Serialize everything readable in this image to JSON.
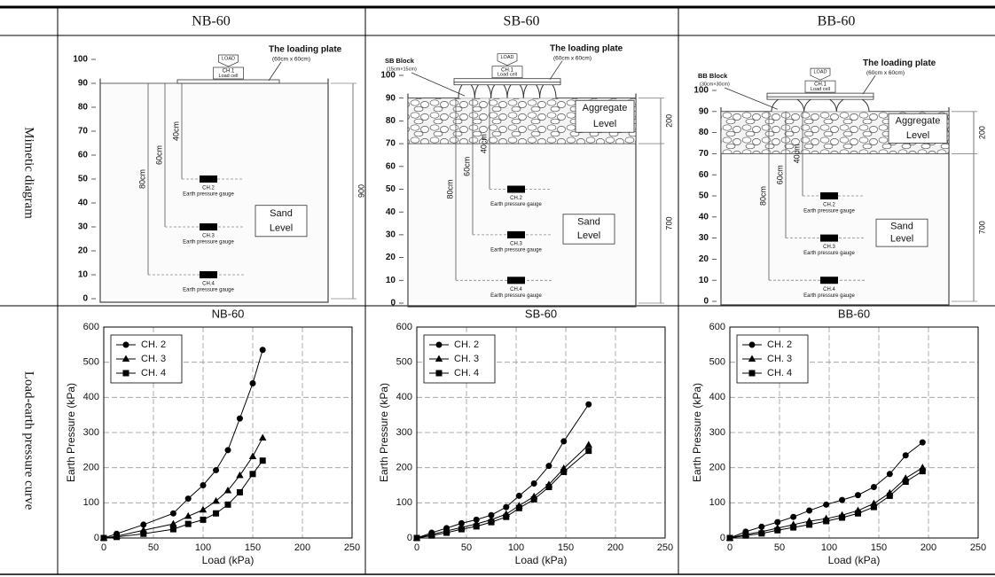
{
  "table": {
    "header": [
      "NB-60",
      "SB-60",
      "BB-60"
    ],
    "row_labels": [
      "Mimetic diagram",
      "Load-earth pressure curve"
    ]
  },
  "diagrams": [
    {
      "ylim": [
        0,
        100
      ],
      "yticks": [
        0,
        10,
        20,
        30,
        40,
        50,
        60,
        70,
        80,
        90,
        100
      ],
      "load": "LOAD",
      "ch1": "CH.1",
      "ch1_sub": "Load cell",
      "plate": "The loading plate",
      "plate_size": "(60cm x 60cm)",
      "depths": [
        "40cm",
        "60cm",
        "80cm"
      ],
      "gauges": [
        "CH.2",
        "CH.3",
        "CH.4"
      ],
      "gauge_text": "Earth pressure gauge",
      "sand": [
        "Sand",
        "Level"
      ],
      "dims": [
        "900"
      ]
    },
    {
      "ylim": [
        0,
        100
      ],
      "yticks": [
        0,
        10,
        20,
        30,
        40,
        50,
        60,
        70,
        80,
        90,
        100
      ],
      "block": "SB Block",
      "block_size": "(15cm×15cm)",
      "load": "LOAD",
      "ch1": "CH.1",
      "ch1_sub": "Load cell",
      "plate": "The loading plate",
      "plate_size": "(60cm x 60cm)",
      "depths": [
        "40cm",
        "60cm",
        "80cm"
      ],
      "gauges": [
        "CH.2",
        "CH.3",
        "CH.4"
      ],
      "gauge_text": "Earth pressure gauge",
      "aggregate": [
        "Aggregate",
        "Level"
      ],
      "sand": [
        "Sand",
        "Level"
      ],
      "dims": [
        "200",
        "700"
      ]
    },
    {
      "ylim": [
        0,
        100
      ],
      "yticks": [
        0,
        10,
        20,
        30,
        40,
        50,
        60,
        70,
        80,
        90,
        100
      ],
      "block": "BB Block",
      "block_size": "(30cm×30cm)",
      "load": "LOAD",
      "ch1": "CH.1",
      "ch1_sub": "Load cell",
      "plate": "The loading plate",
      "plate_size": "(60cm x 60cm)",
      "depths": [
        "40cm",
        "60cm",
        "80cm"
      ],
      "gauges": [
        "CH.2",
        "CH.3",
        "CH.4"
      ],
      "gauge_text": "Earth pressure gauge",
      "aggregate": [
        "Aggregate",
        "Level"
      ],
      "sand": [
        "Sand",
        "Level"
      ],
      "dims": [
        "200",
        "700"
      ]
    }
  ],
  "chart_data": [
    {
      "type": "line",
      "title": "NB-60",
      "xlabel": "Load (kPa)",
      "ylabel": "Earth Pressure (kPa)",
      "x": [
        0,
        13,
        40,
        70,
        85,
        100,
        113,
        125,
        137,
        150,
        160
      ],
      "series": [
        {
          "name": "CH. 2",
          "color": "#000000",
          "marker": "circle",
          "values": [
            0,
            12,
            38,
            70,
            112,
            150,
            193,
            250,
            340,
            440,
            535
          ]
        },
        {
          "name": "CH. 3",
          "color": "#000000",
          "marker": "triangle",
          "values": [
            0,
            5,
            22,
            40,
            62,
            80,
            105,
            135,
            178,
            232,
            285
          ]
        },
        {
          "name": "CH. 4",
          "color": "#000000",
          "marker": "square",
          "values": [
            0,
            3,
            12,
            25,
            40,
            52,
            70,
            95,
            130,
            182,
            220
          ]
        }
      ],
      "xlim": [
        0,
        250
      ],
      "xticks": [
        0,
        50,
        100,
        150,
        200,
        250
      ],
      "ylim": [
        0,
        600
      ],
      "yticks": [
        0,
        100,
        200,
        300,
        400,
        500,
        600
      ],
      "grid": true,
      "legend": "upper left"
    },
    {
      "type": "line",
      "title": "SB-60",
      "xlabel": "Load (kPa)",
      "ylabel": "Earth Pressure (kPa)",
      "x": [
        0,
        15,
        30,
        45,
        60,
        75,
        90,
        103,
        118,
        133,
        148,
        173
      ],
      "series": [
        {
          "name": "CH. 2",
          "color": "#000000",
          "marker": "circle",
          "values": [
            0,
            15,
            28,
            42,
            52,
            65,
            88,
            120,
            155,
            205,
            275,
            380
          ]
        },
        {
          "name": "CH. 3",
          "color": "#000000",
          "marker": "triangle",
          "values": [
            0,
            10,
            20,
            30,
            40,
            52,
            68,
            92,
            118,
            152,
            198,
            265
          ]
        },
        {
          "name": "CH. 4",
          "color": "#000000",
          "marker": "square",
          "values": [
            0,
            7,
            15,
            25,
            33,
            45,
            60,
            85,
            110,
            145,
            188,
            248
          ]
        }
      ],
      "xlim": [
        0,
        250
      ],
      "xticks": [
        0,
        50,
        100,
        150,
        200,
        250
      ],
      "ylim": [
        0,
        600
      ],
      "yticks": [
        0,
        100,
        200,
        300,
        400,
        500,
        600
      ],
      "grid": true,
      "legend": "upper left"
    },
    {
      "type": "line",
      "title": "BB-60",
      "xlabel": "Load (kPa)",
      "ylabel": "Earth Pressure (kPa)",
      "x": [
        0,
        16,
        32,
        48,
        64,
        80,
        97,
        113,
        129,
        145,
        161,
        177,
        194
      ],
      "series": [
        {
          "name": "CH. 2",
          "color": "#000000",
          "marker": "circle",
          "values": [
            0,
            18,
            32,
            45,
            60,
            78,
            95,
            108,
            122,
            145,
            182,
            235,
            272
          ]
        },
        {
          "name": "CH. 3",
          "color": "#000000",
          "marker": "triangle",
          "values": [
            0,
            10,
            18,
            28,
            38,
            48,
            55,
            65,
            78,
            98,
            128,
            170,
            200
          ]
        },
        {
          "name": "CH. 4",
          "color": "#000000",
          "marker": "square",
          "values": [
            0,
            7,
            13,
            22,
            30,
            38,
            48,
            58,
            70,
            88,
            120,
            160,
            190
          ]
        }
      ],
      "xlim": [
        0,
        250
      ],
      "xticks": [
        0,
        50,
        100,
        150,
        200,
        250
      ],
      "ylim": [
        0,
        600
      ],
      "yticks": [
        0,
        100,
        200,
        300,
        400,
        500,
        600
      ],
      "grid": true,
      "legend": "upper left"
    }
  ]
}
